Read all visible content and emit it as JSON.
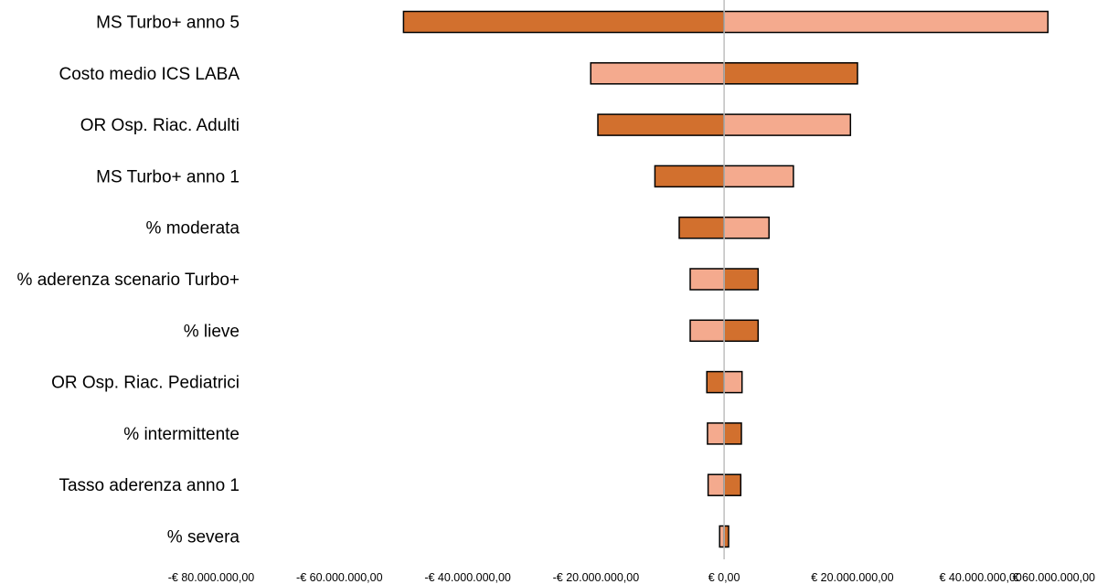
{
  "chart_data": {
    "type": "tornado",
    "title": "",
    "xlabel": "",
    "ylabel": "",
    "xlim": [
      -80000000,
      60000000
    ],
    "x_ticks": [
      -80000000,
      -60000000,
      -40000000,
      -20000000,
      0,
      20000000,
      40000000,
      60000000
    ],
    "x_tick_labels": [
      "-€ 80.000.000,00",
      "-€ 60.000.000,00",
      "-€ 40.000.000,00",
      "-€ 20.000.000,00",
      "€ 0,00",
      "€ 20.000.000,00",
      "€ 40.000.000,00",
      "€ 60.000.000,00"
    ],
    "grid": false,
    "colors": {
      "dark": "#D2702E",
      "light": "#F4AA8E",
      "axis": "#bfbfbf",
      "outline": "#000000"
    },
    "bars": [
      {
        "label": "MS Turbo+ anno 5",
        "neg": -50000000,
        "pos": 50500000,
        "neg_shade": "dark",
        "pos_shade": "light"
      },
      {
        "label": "Costo medio ICS LABA",
        "neg": -20800000,
        "pos": 20800000,
        "neg_shade": "light",
        "pos_shade": "dark"
      },
      {
        "label": "OR Osp. Riac. Adulti",
        "neg": -19700000,
        "pos": 19700000,
        "neg_shade": "dark",
        "pos_shade": "light"
      },
      {
        "label": "MS Turbo+ anno 1",
        "neg": -10800000,
        "pos": 10800000,
        "neg_shade": "dark",
        "pos_shade": "light"
      },
      {
        "label": "% moderata",
        "neg": -7000000,
        "pos": 7000000,
        "neg_shade": "dark",
        "pos_shade": "light"
      },
      {
        "label": "% aderenza scenario Turbo+",
        "neg": -5300000,
        "pos": 5300000,
        "neg_shade": "light",
        "pos_shade": "dark"
      },
      {
        "label": "% lieve",
        "neg": -5300000,
        "pos": 5300000,
        "neg_shade": "light",
        "pos_shade": "dark"
      },
      {
        "label": "OR Osp. Riac. Pediatrici",
        "neg": -2700000,
        "pos": 2800000,
        "neg_shade": "dark",
        "pos_shade": "light"
      },
      {
        "label": "% intermittente",
        "neg": -2600000,
        "pos": 2700000,
        "neg_shade": "light",
        "pos_shade": "dark"
      },
      {
        "label": "Tasso aderenza anno 1",
        "neg": -2500000,
        "pos": 2600000,
        "neg_shade": "light",
        "pos_shade": "dark"
      },
      {
        "label": "% severa",
        "neg": -700000,
        "pos": 700000,
        "neg_shade": "light",
        "pos_shade": "dark"
      }
    ]
  }
}
